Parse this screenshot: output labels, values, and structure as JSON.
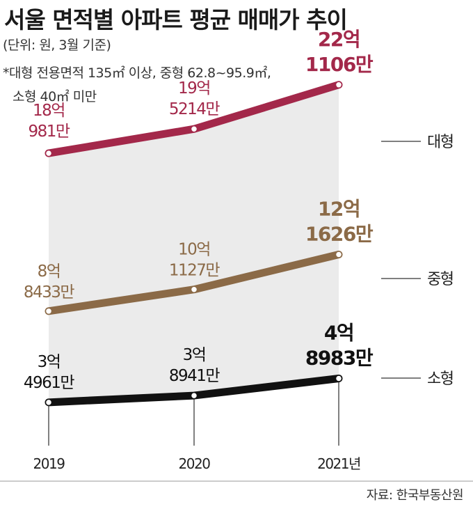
{
  "title": "서울 면적별 아파트 평균 매매가 추이",
  "subtitle": "(단위: 원, 3월 기준)",
  "note_line1": "*대형 전용면적 135㎡ 이상, 중형 62.8~95.9㎡,",
  "note_line2": "소형 40㎡ 미만",
  "source": "자료: 한국부동산원",
  "chart_data": {
    "type": "line",
    "title": "서울 면적별 아파트 평균 매매가 추이",
    "unit": "원",
    "x": [
      "2019",
      "2020",
      "2021년"
    ],
    "series": [
      {
        "name": "대형",
        "color": "#a3284a",
        "values": [
          1809810000,
          1952140000,
          2211060000
        ],
        "labels": [
          [
            "18억",
            "981만"
          ],
          [
            "19억",
            "5214만"
          ],
          [
            "22억",
            "1106만"
          ]
        ]
      },
      {
        "name": "중형",
        "color": "#8b6a47",
        "values": [
          884330000,
          1011270000,
          1216260000
        ],
        "labels": [
          [
            "8억",
            "8433만"
          ],
          [
            "10억",
            "1127만"
          ],
          [
            "12억",
            "1626만"
          ]
        ]
      },
      {
        "name": "소형",
        "color": "#111111",
        "values": [
          349610000,
          389410000,
          489830000
        ],
        "labels": [
          [
            "3억",
            "4961만"
          ],
          [
            "3억",
            "8941만"
          ],
          [
            "4억",
            "8983만"
          ]
        ]
      }
    ]
  }
}
